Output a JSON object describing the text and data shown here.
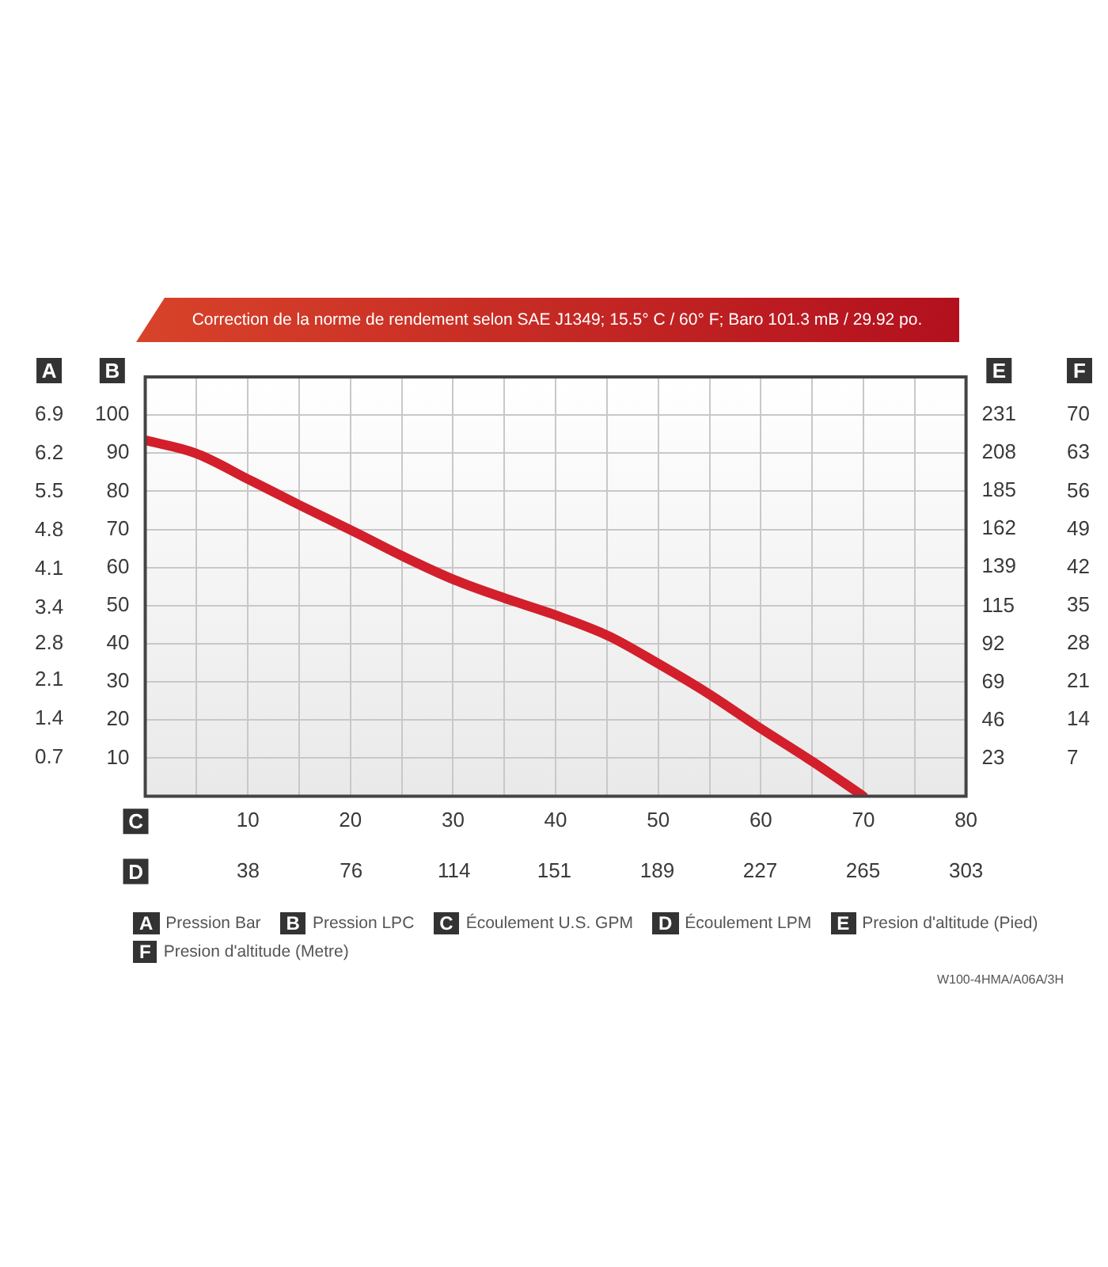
{
  "chart_data": {
    "type": "line",
    "title": "Correction de la norme de rendement selon SAE J1349;  15.5° C / 60° F;  Baro 101.3 mB / 29.92 po.",
    "xlabel": "C",
    "x2label": "D",
    "ylabel": "B",
    "y2label": "A",
    "y3label": "E",
    "x": [
      0,
      4.9,
      10.3,
      15.1,
      20.5,
      25.3,
      30.2,
      35,
      39.8,
      45.2,
      50,
      54.9,
      59.7,
      65.1,
      70
    ],
    "series": [
      {
        "color": "#d21f2b",
        "values": [
          93.4,
          90,
          82.8,
          76.3,
          69.2,
          62.7,
          56.7,
          52,
          47.7,
          42,
          34.8,
          26.9,
          18.3,
          9,
          0
        ]
      }
    ],
    "xlim": [
      0,
      80
    ],
    "xticks": [
      {
        "value": 5,
        "label": null
      },
      10,
      {
        "value": 15,
        "label": null
      },
      20,
      {
        "value": 25,
        "label": null
      },
      30,
      {
        "value": 35,
        "label": null
      },
      40,
      {
        "value": 45,
        "label": null
      },
      50,
      {
        "value": 55,
        "label": null
      },
      60,
      {
        "value": 65,
        "label": null
      },
      70,
      {
        "value": 75,
        "label": null
      },
      80
    ],
    "x2lim": [
      0,
      303
    ],
    "x2ticks": [
      38,
      76,
      114,
      151,
      189,
      227,
      265,
      303
    ],
    "ylim": [
      0,
      110
    ],
    "yticks": [
      10,
      20,
      30,
      40,
      50,
      60,
      70,
      80,
      90,
      100
    ],
    "y2lim": [
      0,
      7.58
    ],
    "y2ticks": [
      0.7,
      1.4,
      2.1,
      {
        "value": 2.76,
        "label": "2.8"
      },
      3.4,
      4.1,
      4.8,
      5.5,
      6.2,
      6.9
    ],
    "y3lim": [
      0,
      254
    ],
    "y3ticks": [
      23,
      46,
      69,
      92,
      115,
      139,
      162,
      185,
      208,
      231
    ],
    "grid": true,
    "marker": "none",
    "legend": false,
    "annotations": [
      "Pression Bar",
      "Pression LPC",
      "Écoulement U.S. GPM",
      "Écoulement LPM",
      "Presion d'altitude (Pied)",
      "Presion d'altitude (Metre)",
      "W100-4HMA/A06A/3H",
      "F",
      "70",
      "63",
      "56",
      "49",
      "42",
      "35",
      "28",
      "21",
      "14",
      "7"
    ]
  }
}
